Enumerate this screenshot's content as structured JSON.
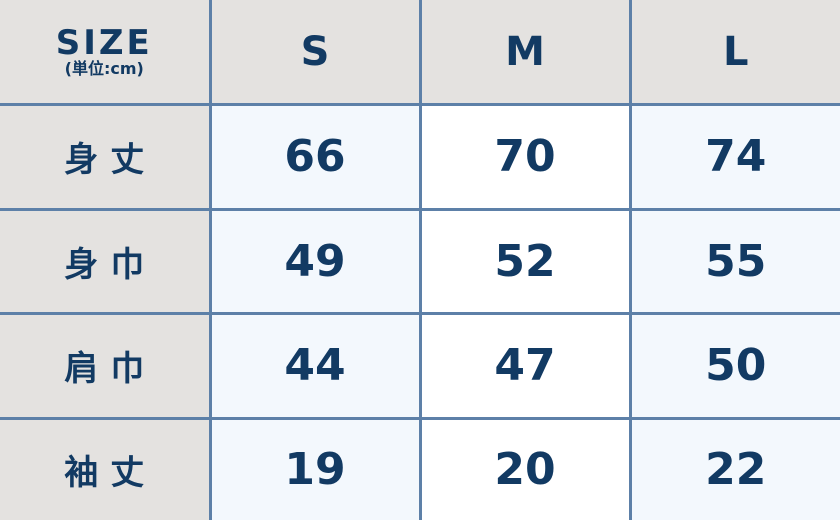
{
  "header": {
    "size_label": "SIZE",
    "unit_label": "(単位:cm)",
    "columns": [
      "S",
      "M",
      "L"
    ]
  },
  "rows": [
    {
      "label": "身丈",
      "values": [
        "66",
        "70",
        "74"
      ]
    },
    {
      "label": "身巾",
      "values": [
        "49",
        "52",
        "55"
      ]
    },
    {
      "label": "肩巾",
      "values": [
        "44",
        "47",
        "50"
      ]
    },
    {
      "label": "袖丈",
      "values": [
        "19",
        "20",
        "22"
      ]
    }
  ],
  "colors": {
    "border": "#5d80a8",
    "text": "#123a63",
    "header_bg": "#e4e2e0",
    "cell_tint": "#f3f8fd"
  }
}
